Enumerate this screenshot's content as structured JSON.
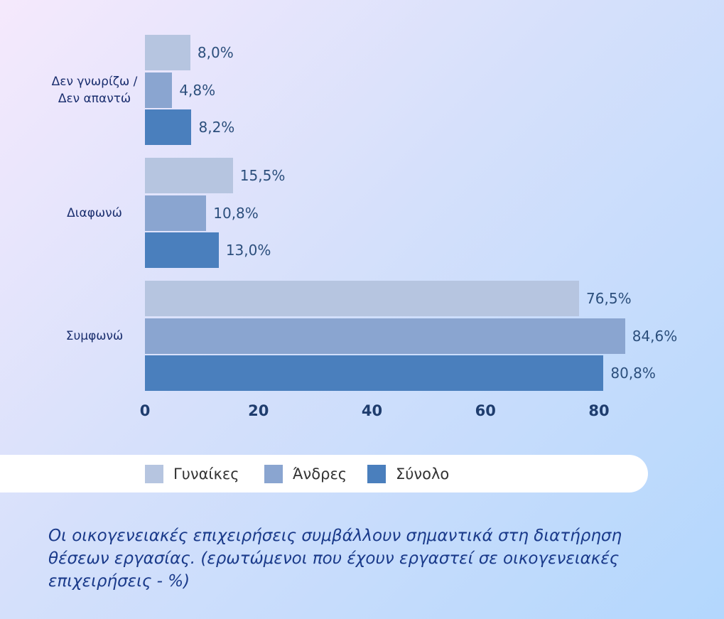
{
  "chart_data": {
    "type": "bar",
    "orientation": "horizontal",
    "title": "Οι οικογενειακές επιχειρήσεις συμβάλλουν σημαντικά στη διατήρηση θέσεων εργασίας. (ερωτώμενοι που έχουν εργαστεί σε οικογενειακές επιχειρήσεις - %)",
    "categories": [
      "Δεν γνωρίζω / Δεν απαντώ",
      "Διαφωνώ",
      "Συμφωνώ"
    ],
    "series": [
      {
        "name": "Γυναίκες",
        "color": "#b6c5e0",
        "values": [
          8.0,
          15.5,
          76.5
        ],
        "value_labels": [
          "8,0%",
          "15,5%",
          "76,5%"
        ]
      },
      {
        "name": "Άνδρες",
        "color": "#8aa5d0",
        "values": [
          4.8,
          10.8,
          84.6
        ],
        "value_labels": [
          "4,8%",
          "10,8%",
          "84,6%"
        ]
      },
      {
        "name": "Σύνολο",
        "color": "#4a7fbd",
        "values": [
          8.2,
          13.0,
          80.8
        ],
        "value_labels": [
          "8,2%",
          "13,0%",
          "80,8%"
        ]
      }
    ],
    "xlim": [
      0,
      80
    ],
    "xticks": [
      0,
      20,
      40,
      60,
      80
    ],
    "legend": "bottom"
  }
}
